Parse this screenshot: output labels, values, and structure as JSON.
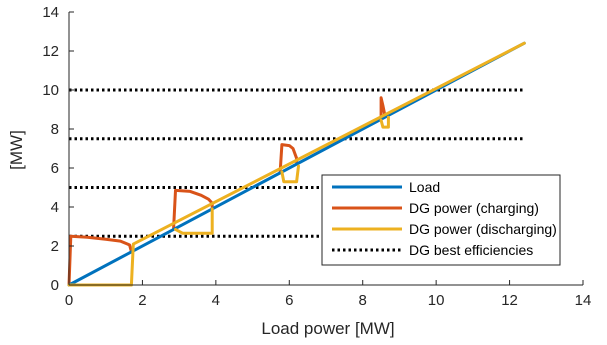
{
  "chart_data": {
    "type": "line",
    "title": "",
    "xlabel": "Load power [MW]",
    "ylabel": "[MW]",
    "xlim": [
      0,
      14
    ],
    "ylim": [
      0,
      14
    ],
    "xticks": [
      0,
      2,
      4,
      6,
      8,
      10,
      12,
      14
    ],
    "yticks": [
      0,
      2,
      4,
      6,
      8,
      10,
      12,
      14
    ],
    "grid": false,
    "legend_position": "lower-right",
    "series": [
      {
        "name": "Load",
        "color": "#0072BD",
        "style": "solid",
        "points": [
          [
            0,
            0
          ],
          [
            12.4,
            12.4
          ]
        ]
      },
      {
        "name": "DG power (charging)",
        "color": "#D95319",
        "style": "solid",
        "segments": [
          [
            [
              0,
              0
            ],
            [
              0.05,
              2.5
            ],
            [
              0.5,
              2.45
            ],
            [
              1.0,
              2.35
            ],
            [
              1.4,
              2.25
            ],
            [
              1.6,
              2.1
            ],
            [
              1.65,
              2.05
            ],
            [
              1.7,
              1.7
            ]
          ],
          [
            [
              2.85,
              2.9
            ],
            [
              2.9,
              4.85
            ],
            [
              3.3,
              4.8
            ],
            [
              3.6,
              4.6
            ],
            [
              3.8,
              4.4
            ],
            [
              3.9,
              4.2
            ],
            [
              3.9,
              3.95
            ]
          ],
          [
            [
              5.75,
              5.75
            ],
            [
              5.8,
              7.2
            ],
            [
              6.0,
              7.15
            ],
            [
              6.1,
              7.0
            ],
            [
              6.2,
              6.5
            ],
            [
              6.2,
              6.3
            ]
          ],
          [
            [
              8.5,
              8.5
            ],
            [
              8.5,
              9.6
            ],
            [
              8.55,
              9.2
            ],
            [
              8.6,
              8.75
            ]
          ]
        ]
      },
      {
        "name": "DG power (discharging)",
        "color": "#EDB120",
        "style": "solid",
        "segments": [
          [
            [
              0.0,
              0.0
            ],
            [
              1.7,
              0.0
            ],
            [
              1.75,
              2.1
            ],
            [
              12.4,
              12.4
            ]
          ],
          [
            [
              2.9,
              2.85
            ],
            [
              3.1,
              2.65
            ],
            [
              3.9,
              2.65
            ],
            [
              3.9,
              3.9
            ]
          ],
          [
            [
              5.8,
              5.8
            ],
            [
              5.85,
              5.3
            ],
            [
              6.2,
              5.3
            ],
            [
              6.25,
              6.1
            ]
          ],
          [
            [
              8.5,
              8.45
            ],
            [
              8.55,
              8.1
            ],
            [
              8.7,
              8.1
            ],
            [
              8.7,
              8.6
            ]
          ]
        ]
      },
      {
        "name": "DG best efficiencies",
        "color": "#000000",
        "style": "dotted",
        "lines_y": [
          2.5,
          5,
          7.5,
          10
        ],
        "x_range": [
          0,
          12.4
        ]
      }
    ]
  }
}
